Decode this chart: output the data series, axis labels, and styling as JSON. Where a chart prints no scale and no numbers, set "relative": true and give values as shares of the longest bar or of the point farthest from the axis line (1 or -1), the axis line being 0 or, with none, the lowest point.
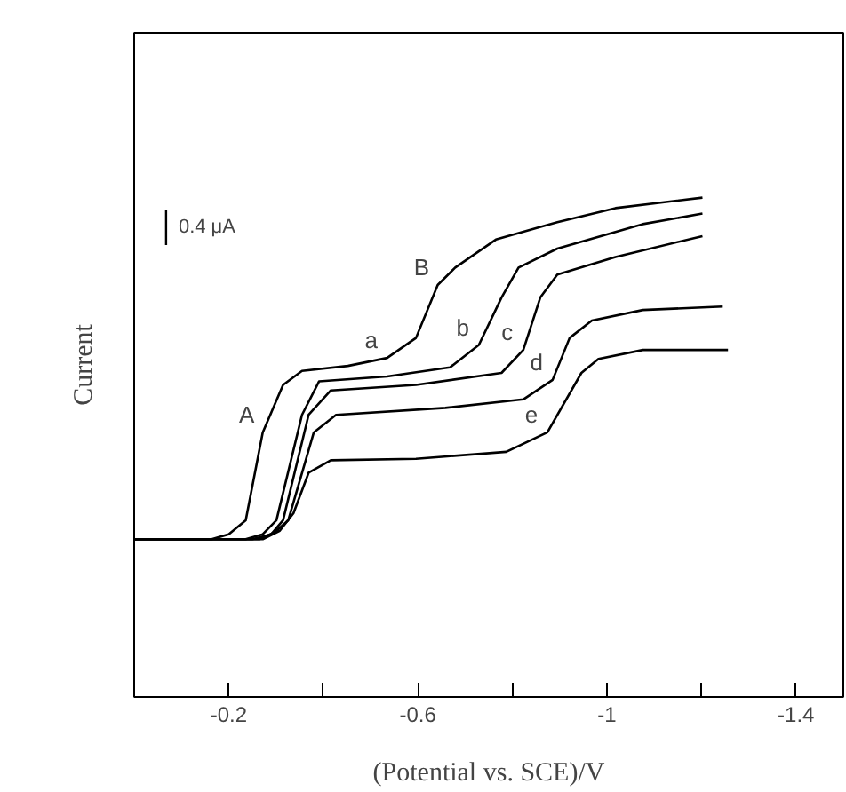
{
  "chart_data": {
    "type": "line",
    "relative": true,
    "xlabel": "(Potential vs. SCE)/V",
    "ylabel": "Current",
    "xlim": [
      0.0,
      -1.5
    ],
    "xticks": [
      -0.2,
      {
        "value": -0.4,
        "label": null
      },
      -0.6,
      {
        "value": -0.8,
        "label": null
      },
      -1.0,
      {
        "value": -1.2,
        "label": null
      },
      -1.4
    ],
    "tick_labels": "x",
    "grid": false,
    "marker": "none",
    "line_style": "solid",
    "series": [
      {
        "color": "#000000",
        "x": [
          0.0,
          -0.164,
          -0.2,
          -0.236,
          -0.272,
          -0.315,
          -0.355,
          -0.452,
          -0.535,
          -0.596,
          -0.642,
          -0.679,
          -0.765,
          -0.895,
          -1.018,
          -1.202
        ],
        "values": [
          0.316,
          0.316,
          0.326,
          0.354,
          0.53,
          0.625,
          0.653,
          0.663,
          0.679,
          0.719,
          0.825,
          0.86,
          0.916,
          0.951,
          0.979,
          1.0
        ]
      },
      {
        "color": "#000000",
        "x": [
          0.0,
          -0.236,
          -0.272,
          -0.301,
          -0.355,
          -0.391,
          -0.535,
          -0.668,
          -0.729,
          -0.777,
          -0.813,
          -0.895,
          -1.076,
          -1.202
        ],
        "values": [
          0.316,
          0.316,
          0.326,
          0.354,
          0.565,
          0.632,
          0.642,
          0.66,
          0.705,
          0.8,
          0.86,
          0.898,
          0.947,
          0.968
        ]
      },
      {
        "color": "#000000",
        "x": [
          0.0,
          -0.25,
          -0.29,
          -0.315,
          -0.369,
          -0.416,
          -0.596,
          -0.777,
          -0.823,
          -0.859,
          -0.895,
          -1.018,
          -1.202
        ],
        "values": [
          0.316,
          0.316,
          0.326,
          0.354,
          0.565,
          0.614,
          0.625,
          0.649,
          0.695,
          0.8,
          0.846,
          0.881,
          0.923
        ]
      },
      {
        "color": "#000000",
        "x": [
          0.0,
          -0.265,
          -0.297,
          -0.326,
          -0.38,
          -0.427,
          -0.658,
          -0.823,
          -0.885,
          -0.921,
          -0.968,
          -1.076,
          -1.245
        ],
        "values": [
          0.316,
          0.316,
          0.33,
          0.354,
          0.53,
          0.565,
          0.579,
          0.596,
          0.635,
          0.719,
          0.754,
          0.775,
          0.782
        ]
      },
      {
        "color": "#000000",
        "x": [
          0.0,
          -0.272,
          -0.308,
          -0.337,
          -0.369,
          -0.416,
          -0.596,
          -0.787,
          -0.874,
          -0.946,
          -0.982,
          -1.076,
          -1.256
        ],
        "values": [
          0.316,
          0.316,
          0.333,
          0.368,
          0.449,
          0.474,
          0.477,
          0.491,
          0.53,
          0.649,
          0.677,
          0.695,
          0.695
        ]
      }
    ],
    "annotations": [
      {
        "text": "A",
        "x": -0.272,
        "y": 0.53
      },
      {
        "text": "B",
        "x": -0.642,
        "y": 0.825
      },
      {
        "text": "a",
        "x": -0.535,
        "y": 0.679
      },
      {
        "text": "b",
        "x": -0.729,
        "y": 0.705
      },
      {
        "text": "c",
        "x": -0.823,
        "y": 0.695
      },
      {
        "text": "d",
        "x": -0.885,
        "y": 0.635
      },
      {
        "text": "e",
        "x": -0.874,
        "y": 0.53
      },
      "0.4 μA"
    ]
  }
}
